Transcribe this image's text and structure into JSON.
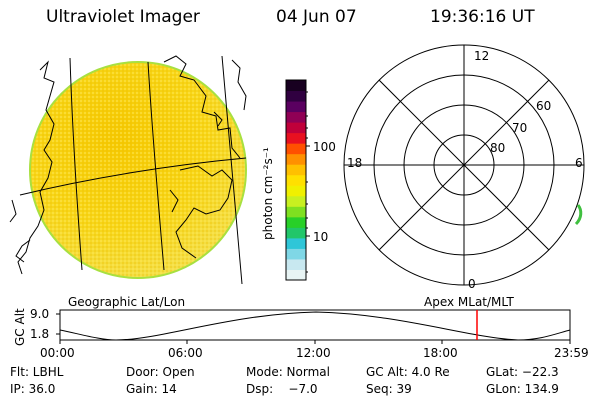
{
  "header": {
    "instrument": "Ultraviolet Imager",
    "date": "04 Jun 07",
    "time": "19:36:16 UT"
  },
  "colorbar": {
    "unit_label": "photon cm⁻²s⁻¹",
    "tick_100": "100",
    "tick_10": "10",
    "colors": [
      "#e8f4f4",
      "#c8e8f0",
      "#7fd7e6",
      "#2fc6d8",
      "#22c66a",
      "#28d028",
      "#7fe020",
      "#c8f020",
      "#f0f000",
      "#ffe000",
      "#ffc000",
      "#ff9000",
      "#ff5000",
      "#e81020",
      "#c0003a",
      "#900055",
      "#5a0060",
      "#300040",
      "#180020"
    ]
  },
  "polar_plot": {
    "mlt_labels": {
      "top": "12",
      "left": "18",
      "right": "6",
      "bottom": "0"
    },
    "lat_labels": [
      "60",
      "70",
      "80"
    ]
  },
  "timeline": {
    "left_title": "Geographic Lat/Lon",
    "right_title": "Apex MLat/MLT",
    "y_axis_label": "GC Alt",
    "y_ticks": [
      "9.0",
      "1.8"
    ],
    "x_ticks": [
      "00:00",
      "06:00",
      "12:00",
      "18:00",
      "23:59"
    ],
    "marker_color": "#ff0000"
  },
  "info": {
    "row1": [
      "Flt: LBHL",
      "Door: Open",
      "Mode: Normal",
      "GC Alt: 4.0 Re",
      "GLat: −22.3"
    ],
    "row2": [
      "IP: 36.0",
      "Gain: 14",
      "Dsp:    −7.0",
      "Seq: 39",
      "GLon: 134.9"
    ]
  },
  "colors": {
    "disk_fill": "#f7d619",
    "disk_edge": "#a8e040"
  }
}
